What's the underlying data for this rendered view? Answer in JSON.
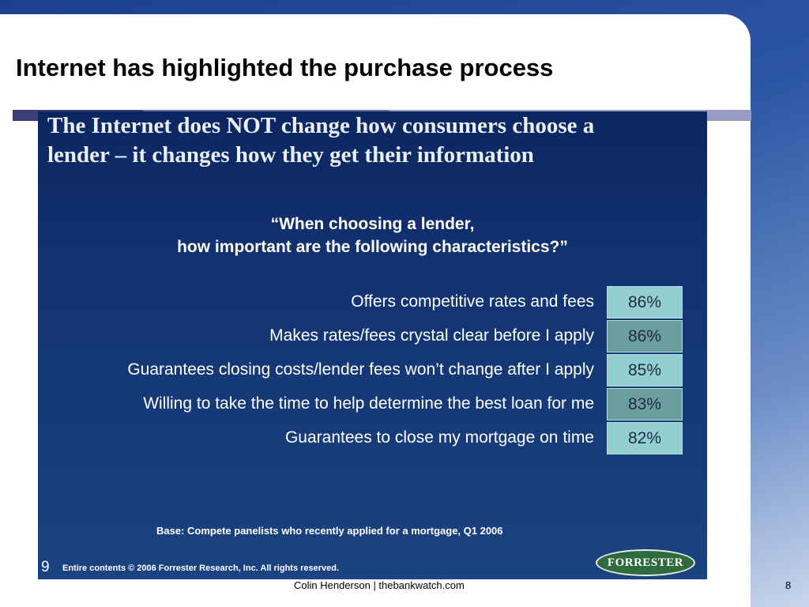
{
  "slide": {
    "title": "Internet has highlighted the purchase process",
    "footer": "Colin Henderson | thebankwatch.com",
    "number": "8"
  },
  "embedded": {
    "headline_line1": "The Internet does NOT change how consumers choose a",
    "headline_line2": "lender – it changes how they get their information",
    "question_line1": "“When choosing a lender,",
    "question_line2": "how important are the following characteristics?”",
    "rows": [
      {
        "label": "Offers competitive rates and fees",
        "value": "86%"
      },
      {
        "label": "Makes rates/fees crystal clear before I apply",
        "value": "86%"
      },
      {
        "label": "Guarantees closing costs/lender fees won’t change after I apply",
        "value": "85%"
      },
      {
        "label": "Willing to take the time to help determine the best loan for me",
        "value": "83%"
      },
      {
        "label": "Guarantees to close my mortgage on time",
        "value": "82%"
      }
    ],
    "base_note": "Base: Compete panelists who recently applied for a mortgage, Q1 2006",
    "page_number": "9",
    "copyright": "Entire contents © 2006  Forrester Research, Inc. All rights reserved.",
    "logo_text": "FORRESTER"
  },
  "colors": {
    "embedded_bg": "#123372",
    "cell_light": "#93cfd1",
    "cell_dark": "#6c9ea0",
    "title_bar_dark": "#3d3d7a",
    "title_bar_mid": "#6a6aa6",
    "title_bar_light": "#9a9ac6",
    "logo_green": "#2f6b3c"
  }
}
